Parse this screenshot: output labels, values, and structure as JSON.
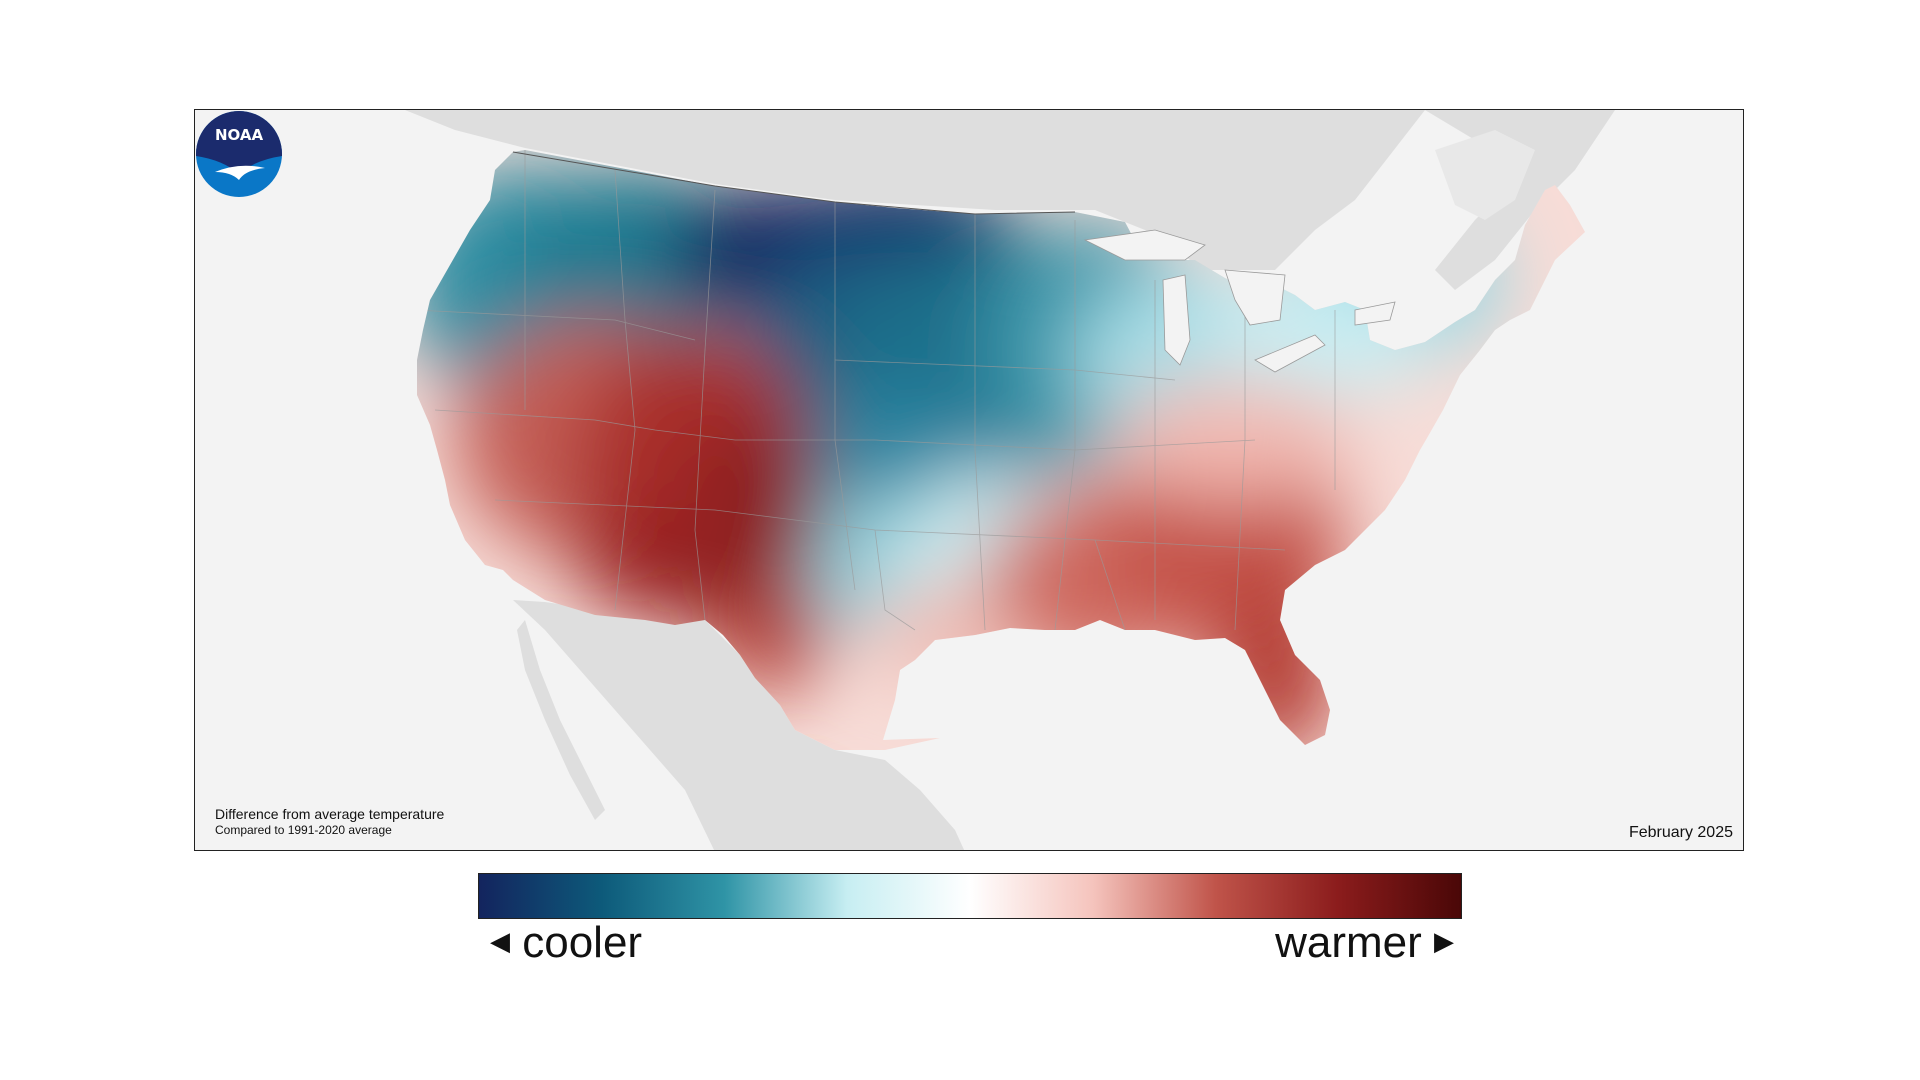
{
  "map": {
    "caption_title": "Difference from average temperature",
    "caption_subtitle": "Compared to 1991-2020 average",
    "date": "February 2025",
    "logo_text": "NOAA"
  },
  "legend": {
    "cooler_label": "cooler",
    "warmer_label": "warmer",
    "colors": [
      "#13245e",
      "#0d5a7a",
      "#2f94a6",
      "#c7eef2",
      "#ffffff",
      "#f5c4bd",
      "#c0544a",
      "#8b1c1c",
      "#4a0707"
    ]
  },
  "colors": {
    "land_outside": "#dedede",
    "ocean": "#f3f3f3",
    "cool_strong": "#13245e",
    "cool": "#1f7a91",
    "warm": "#b33a33",
    "warm_strong": "#7a1414"
  }
}
